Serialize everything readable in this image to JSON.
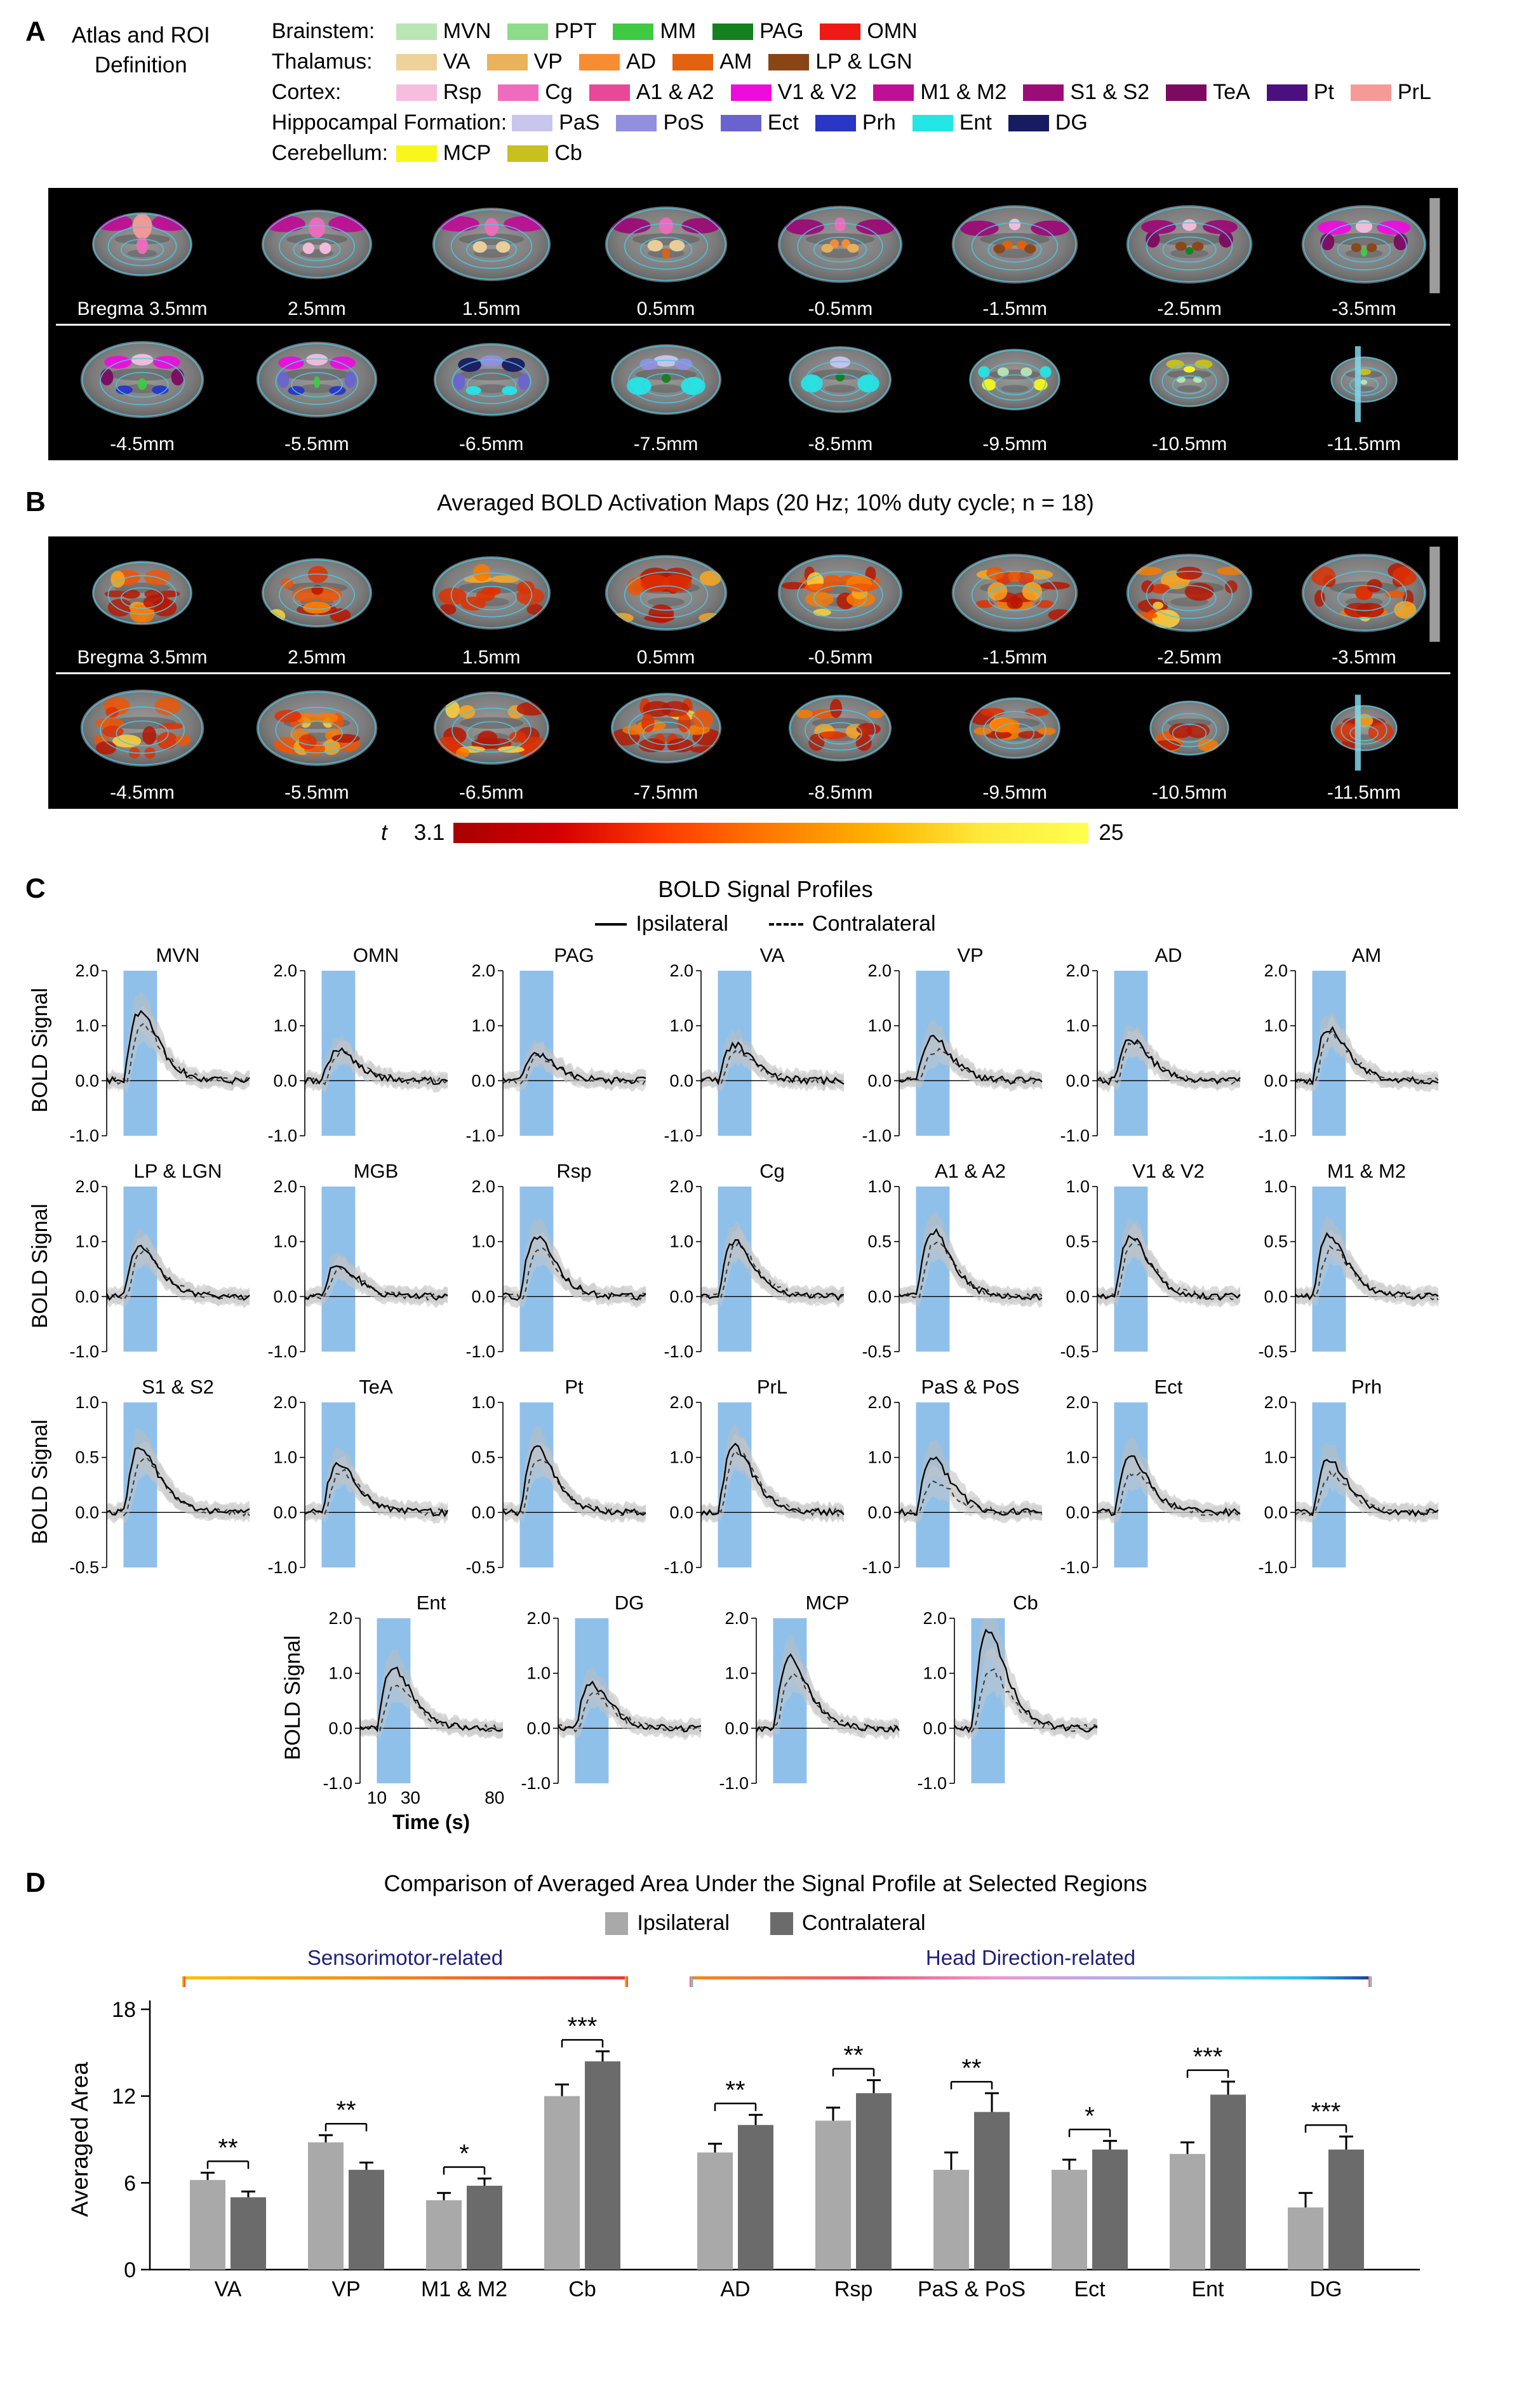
{
  "panelA": {
    "label": "A",
    "title_line1": "Atlas and ROI",
    "title_line2": "Definition",
    "legend_rows": [
      {
        "group": "Brainstem:",
        "items": [
          {
            "label": "MVN",
            "color": "#b9e6b4"
          },
          {
            "label": "PPT",
            "color": "#8edc8a"
          },
          {
            "label": "MM",
            "color": "#3fca44"
          },
          {
            "label": "PAG",
            "color": "#14801e"
          },
          {
            "label": "OMN",
            "color": "#ef1a16"
          }
        ]
      },
      {
        "group": "Thalamus:",
        "items": [
          {
            "label": "VA",
            "color": "#eed29a"
          },
          {
            "label": "VP",
            "color": "#e9b25b"
          },
          {
            "label": "AD",
            "color": "#f78d33"
          },
          {
            "label": "AM",
            "color": "#e2620f"
          },
          {
            "label": "LP & LGN",
            "color": "#8a4516"
          }
        ]
      },
      {
        "group": "Cortex:",
        "items": [
          {
            "label": "Rsp",
            "color": "#f6bede"
          },
          {
            "label": "Cg",
            "color": "#ef6bbd"
          },
          {
            "label": "A1 & A2",
            "color": "#e84897"
          },
          {
            "label": "V1 & V2",
            "color": "#ec0ddd"
          },
          {
            "label": "M1 & M2",
            "color": "#bf0f95"
          },
          {
            "label": "S1 & S2",
            "color": "#9c0c76"
          },
          {
            "label": "TeA",
            "color": "#7c0a60"
          },
          {
            "label": "Pt",
            "color": "#49107e"
          },
          {
            "label": "PrL",
            "color": "#f69a97"
          }
        ]
      },
      {
        "group": "Hippocampal Formation:",
        "items": [
          {
            "label": "PaS",
            "color": "#c9c6ee"
          },
          {
            "label": "PoS",
            "color": "#938fdf"
          },
          {
            "label": "Ect",
            "color": "#6a63cf"
          },
          {
            "label": "Prh",
            "color": "#2936c6"
          },
          {
            "label": "Ent",
            "color": "#23e6e6"
          },
          {
            "label": "DG",
            "color": "#181a62"
          }
        ]
      },
      {
        "group": "Cerebellum:",
        "items": [
          {
            "label": "MCP",
            "color": "#f7f71b"
          },
          {
            "label": "Cb",
            "color": "#c8c01e"
          }
        ]
      }
    ],
    "slice_labels_row1": [
      "Bregma 3.5mm",
      "2.5mm",
      "1.5mm",
      "0.5mm",
      "-0.5mm",
      "-1.5mm",
      "-2.5mm",
      "-3.5mm"
    ],
    "slice_labels_row2": [
      "-4.5mm",
      "-5.5mm",
      "-6.5mm",
      "-7.5mm",
      "-8.5mm",
      "-9.5mm",
      "-10.5mm",
      "-11.5mm"
    ]
  },
  "panelB": {
    "label": "B",
    "title": "Averaged BOLD Activation Maps (20 Hz; 10% duty cycle; n = 18)",
    "slice_labels_row1": [
      "Bregma 3.5mm",
      "2.5mm",
      "1.5mm",
      "0.5mm",
      "-0.5mm",
      "-1.5mm",
      "-2.5mm",
      "-3.5mm"
    ],
    "slice_labels_row2": [
      "-4.5mm",
      "-5.5mm",
      "-6.5mm",
      "-7.5mm",
      "-8.5mm",
      "-9.5mm",
      "-10.5mm",
      "-11.5mm"
    ],
    "colorbar": {
      "stat_label": "t",
      "min": "3.1",
      "max": "25"
    }
  },
  "panelC": {
    "label": "C",
    "title": "BOLD Signal Profiles",
    "legend_ipsi": "Ipsilateral",
    "legend_contra": "Contralateral",
    "ylabel": "BOLD Signal",
    "xlabel": "Time (s)",
    "xticks": [
      "10",
      "30",
      "80"
    ],
    "yticks_high": [
      "2.0",
      "1.0",
      "0.0",
      "-1.0"
    ],
    "yticks_low": [
      "1.0",
      "0.5",
      "0.0",
      "-0.5"
    ],
    "rows": [
      [
        {
          "name": "MVN",
          "scale": "high",
          "peak_ipsi": 1.25,
          "peak_contra": 1.0
        },
        {
          "name": "OMN",
          "scale": "high",
          "peak_ipsi": 0.55,
          "peak_contra": 0.5
        },
        {
          "name": "PAG",
          "scale": "high",
          "peak_ipsi": 0.5,
          "peak_contra": 0.45
        },
        {
          "name": "VA",
          "scale": "high",
          "peak_ipsi": 0.65,
          "peak_contra": 0.5
        },
        {
          "name": "VP",
          "scale": "high",
          "peak_ipsi": 0.8,
          "peak_contra": 0.55
        },
        {
          "name": "AD",
          "scale": "high",
          "peak_ipsi": 0.75,
          "peak_contra": 0.7
        },
        {
          "name": "AM",
          "scale": "high",
          "peak_ipsi": 0.95,
          "peak_contra": 0.85
        }
      ],
      [
        {
          "name": "LP & LGN",
          "scale": "high",
          "peak_ipsi": 0.95,
          "peak_contra": 0.85
        },
        {
          "name": "MGB",
          "scale": "high",
          "peak_ipsi": 0.6,
          "peak_contra": 0.5
        },
        {
          "name": "Rsp",
          "scale": "high",
          "peak_ipsi": 1.1,
          "peak_contra": 0.85
        },
        {
          "name": "Cg",
          "scale": "high",
          "peak_ipsi": 1.0,
          "peak_contra": 0.95
        },
        {
          "name": "A1 & A2",
          "scale": "low",
          "peak_ipsi": 0.6,
          "peak_contra": 0.5
        },
        {
          "name": "V1 & V2",
          "scale": "low",
          "peak_ipsi": 0.55,
          "peak_contra": 0.5
        },
        {
          "name": "M1 & M2",
          "scale": "low",
          "peak_ipsi": 0.55,
          "peak_contra": 0.45
        }
      ],
      [
        {
          "name": "S1 & S2",
          "scale": "low",
          "peak_ipsi": 0.6,
          "peak_contra": 0.5
        },
        {
          "name": "TeA",
          "scale": "high",
          "peak_ipsi": 0.9,
          "peak_contra": 0.75
        },
        {
          "name": "Pt",
          "scale": "low",
          "peak_ipsi": 0.6,
          "peak_contra": 0.5
        },
        {
          "name": "PrL",
          "scale": "high",
          "peak_ipsi": 1.2,
          "peak_contra": 1.1
        },
        {
          "name": "PaS & PoS",
          "scale": "high",
          "peak_ipsi": 1.0,
          "peak_contra": 0.55
        },
        {
          "name": "Ect",
          "scale": "high",
          "peak_ipsi": 1.0,
          "peak_contra": 0.75
        },
        {
          "name": "Prh",
          "scale": "high",
          "peak_ipsi": 0.95,
          "peak_contra": 0.7
        }
      ],
      [
        {
          "name": "Ent",
          "scale": "high",
          "peak_ipsi": 1.1,
          "peak_contra": 0.8
        },
        {
          "name": "DG",
          "scale": "high",
          "peak_ipsi": 0.8,
          "peak_contra": 0.6
        },
        {
          "name": "MCP",
          "scale": "high",
          "peak_ipsi": 1.3,
          "peak_contra": 1.0
        },
        {
          "name": "Cb",
          "scale": "high",
          "peak_ipsi": 1.8,
          "peak_contra": 1.05
        }
      ]
    ]
  },
  "panelD": {
    "label": "D",
    "title": "Comparison of Averaged Area Under the Signal Profile at Selected Regions",
    "legend": [
      {
        "label": "Ipsilateral",
        "color": "#a9a9a9"
      },
      {
        "label": "Contralateral",
        "color": "#6b6b6b"
      }
    ],
    "groups": [
      {
        "label": "Sensorimotor-related",
        "span": [
          0,
          3
        ]
      },
      {
        "label": "Head Direction-related",
        "span": [
          4,
          9
        ]
      }
    ],
    "ylabel": "Averaged Area",
    "yticks": [
      "0",
      "6",
      "12",
      "18"
    ],
    "chart_data": {
      "type": "bar",
      "categories": [
        "VA",
        "VP",
        "M1 & M2",
        "Cb",
        "AD",
        "Rsp",
        "PaS & PoS",
        "Ect",
        "Ent",
        "DG"
      ],
      "series": [
        {
          "name": "Ipsilateral",
          "color": "#a9a9a9",
          "values": [
            6.2,
            8.8,
            4.8,
            12.0,
            8.1,
            10.3,
            6.9,
            6.9,
            8.0,
            4.3
          ],
          "errors": [
            0.5,
            0.5,
            0.5,
            0.8,
            0.6,
            0.9,
            1.2,
            0.7,
            0.8,
            1.0
          ]
        },
        {
          "name": "Contralateral",
          "color": "#6b6b6b",
          "values": [
            5.0,
            6.9,
            5.8,
            14.4,
            10.0,
            12.2,
            10.9,
            8.3,
            12.1,
            8.3
          ],
          "errors": [
            0.4,
            0.5,
            0.5,
            0.7,
            0.7,
            0.9,
            1.3,
            0.6,
            0.9,
            0.9
          ]
        }
      ],
      "significance": [
        "**",
        "**",
        "*",
        "***",
        "**",
        "**",
        "**",
        "*",
        "***",
        "***"
      ],
      "ylim": [
        0,
        18
      ]
    }
  }
}
